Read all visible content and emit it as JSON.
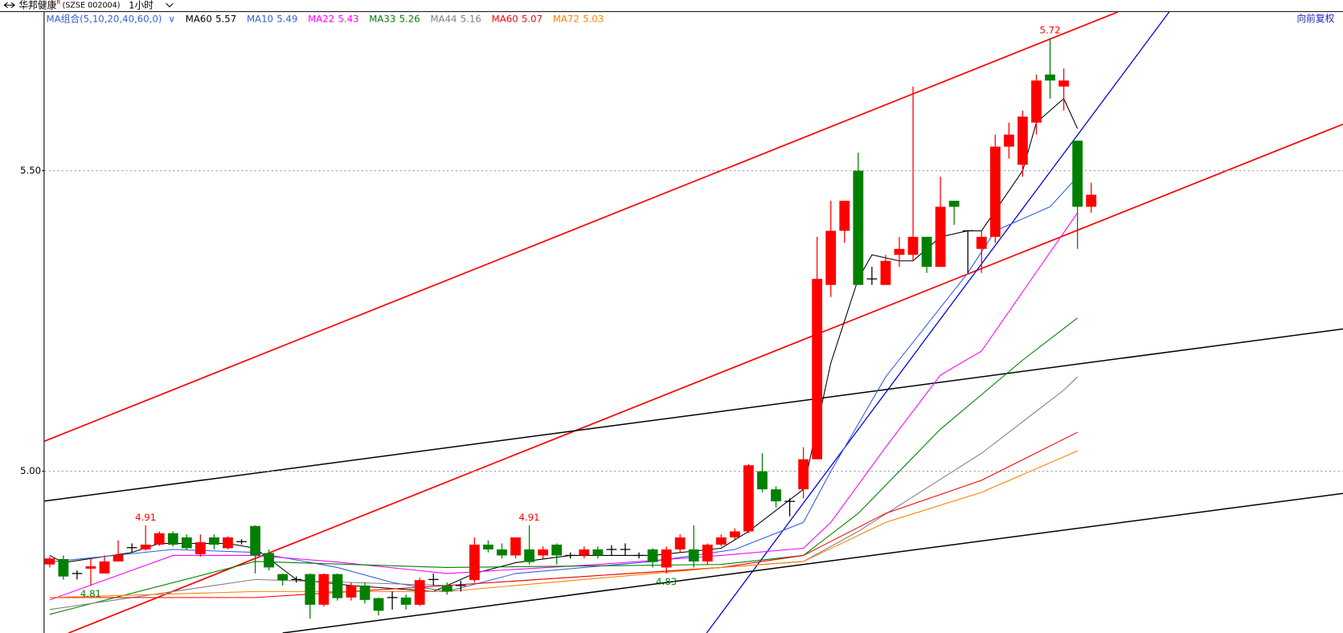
{
  "header": {
    "stock": "华邦健康",
    "superscript": "R",
    "code": "(SZSE 002004)",
    "period": "1小时",
    "adjust": "向前复权"
  },
  "chart_data": {
    "type": "candlestick",
    "indicator_set": "MA组合(5,10,20,40,60,0)",
    "ylim": [
      4.731,
      5.764
    ],
    "yticks": [
      {
        "value": 5,
        "label": "5.00"
      },
      {
        "value": 5.5,
        "label": "5.50"
      }
    ],
    "grid": true,
    "up_color": "#ff0000",
    "down_color": "#008000",
    "flat_color": "#000000",
    "candles": [
      {
        "open": 4.845,
        "high": 4.858,
        "low": 4.84,
        "close": 4.855
      },
      {
        "open": 4.854,
        "high": 4.86,
        "low": 4.82,
        "close": 4.825
      },
      {
        "open": 4.83,
        "high": 4.835,
        "low": 4.82,
        "close": 4.83
      },
      {
        "open": 4.838,
        "high": 4.855,
        "low": 4.81,
        "close": 4.842,
        "low_label": "4.81"
      },
      {
        "open": 4.83,
        "high": 4.86,
        "low": 4.83,
        "close": 4.85
      },
      {
        "open": 4.85,
        "high": 4.885,
        "low": 4.85,
        "close": 4.861
      },
      {
        "open": 4.873,
        "high": 4.88,
        "low": 4.865,
        "close": 4.873
      },
      {
        "open": 4.87,
        "high": 4.91,
        "low": 4.868,
        "close": 4.878,
        "high_label": "4.91"
      },
      {
        "open": 4.878,
        "high": 4.9,
        "low": 4.876,
        "close": 4.897
      },
      {
        "open": 4.897,
        "high": 4.9,
        "low": 4.875,
        "close": 4.878
      },
      {
        "open": 4.89,
        "high": 4.895,
        "low": 4.87,
        "close": 4.872
      },
      {
        "open": 4.862,
        "high": 4.895,
        "low": 4.858,
        "close": 4.882
      },
      {
        "open": 4.89,
        "high": 4.895,
        "low": 4.87,
        "close": 4.878
      },
      {
        "open": 4.872,
        "high": 4.892,
        "low": 4.87,
        "close": 4.89
      },
      {
        "open": 4.883,
        "high": 4.887,
        "low": 4.878,
        "close": 4.883
      },
      {
        "open": 4.909,
        "high": 4.91,
        "low": 4.83,
        "close": 4.86
      },
      {
        "open": 4.864,
        "high": 4.87,
        "low": 4.835,
        "close": 4.84
      },
      {
        "open": 4.829,
        "high": 4.83,
        "low": 4.81,
        "close": 4.819
      },
      {
        "open": 4.82,
        "high": 4.825,
        "low": 4.815,
        "close": 4.82
      },
      {
        "open": 4.829,
        "high": 4.83,
        "low": 4.755,
        "close": 4.778
      },
      {
        "open": 4.778,
        "high": 4.83,
        "low": 4.775,
        "close": 4.829
      },
      {
        "open": 4.829,
        "high": 4.83,
        "low": 4.785,
        "close": 4.789
      },
      {
        "open": 4.79,
        "high": 4.815,
        "low": 4.785,
        "close": 4.81
      },
      {
        "open": 4.81,
        "high": 4.815,
        "low": 4.78,
        "close": 4.786
      },
      {
        "open": 4.789,
        "high": 4.79,
        "low": 4.76,
        "close": 4.768
      },
      {
        "open": 4.79,
        "high": 4.8,
        "low": 4.77,
        "close": 4.79
      },
      {
        "open": 4.79,
        "high": 4.795,
        "low": 4.77,
        "close": 4.778
      },
      {
        "open": 4.778,
        "high": 4.823,
        "low": 4.776,
        "close": 4.819
      },
      {
        "open": 4.82,
        "high": 4.83,
        "low": 4.81,
        "close": 4.82
      },
      {
        "open": 4.81,
        "high": 4.815,
        "low": 4.795,
        "close": 4.8
      },
      {
        "open": 4.81,
        "high": 4.818,
        "low": 4.8,
        "close": 4.81
      },
      {
        "open": 4.819,
        "high": 4.89,
        "low": 4.815,
        "close": 4.878
      },
      {
        "open": 4.878,
        "high": 4.885,
        "low": 4.865,
        "close": 4.87
      },
      {
        "open": 4.87,
        "high": 4.88,
        "low": 4.855,
        "close": 4.86
      },
      {
        "open": 4.86,
        "high": 4.89,
        "low": 4.855,
        "close": 4.89
      },
      {
        "open": 4.87,
        "high": 4.91,
        "low": 4.845,
        "close": 4.849,
        "high_label": "4.91"
      },
      {
        "open": 4.86,
        "high": 4.875,
        "low": 4.855,
        "close": 4.87
      },
      {
        "open": 4.878,
        "high": 4.88,
        "low": 4.845,
        "close": 4.86
      },
      {
        "open": 4.86,
        "high": 4.865,
        "low": 4.855,
        "close": 4.86
      },
      {
        "open": 4.86,
        "high": 4.875,
        "low": 4.855,
        "close": 4.87
      },
      {
        "open": 4.87,
        "high": 4.875,
        "low": 4.855,
        "close": 4.86
      },
      {
        "open": 4.87,
        "high": 4.877,
        "low": 4.86,
        "close": 4.87
      },
      {
        "open": 4.87,
        "high": 4.88,
        "low": 4.86,
        "close": 4.87
      },
      {
        "open": 4.86,
        "high": 4.865,
        "low": 4.855,
        "close": 4.86
      },
      {
        "open": 4.87,
        "high": 4.872,
        "low": 4.84,
        "close": 4.849
      },
      {
        "open": 4.84,
        "high": 4.875,
        "low": 4.83,
        "close": 4.87,
        "low_label": "4.83"
      },
      {
        "open": 4.87,
        "high": 4.895,
        "low": 4.865,
        "close": 4.89
      },
      {
        "open": 4.87,
        "high": 4.91,
        "low": 4.84,
        "close": 4.85
      },
      {
        "open": 4.85,
        "high": 4.88,
        "low": 4.845,
        "close": 4.878
      },
      {
        "open": 4.878,
        "high": 4.895,
        "low": 4.875,
        "close": 4.89
      },
      {
        "open": 4.89,
        "high": 4.905,
        "low": 4.887,
        "close": 4.9
      },
      {
        "open": 4.9,
        "high": 5.012,
        "low": 4.897,
        "close": 5.01
      },
      {
        "open": 5.0,
        "high": 5.03,
        "low": 4.965,
        "close": 4.97
      },
      {
        "open": 4.97,
        "high": 4.975,
        "low": 4.94,
        "close": 4.95
      },
      {
        "open": 4.95,
        "high": 4.955,
        "low": 4.925,
        "close": 4.95
      },
      {
        "open": 4.97,
        "high": 5.04,
        "low": 4.955,
        "close": 5.02
      },
      {
        "open": 5.02,
        "high": 5.39,
        "low": 5.02,
        "close": 5.32
      },
      {
        "open": 5.31,
        "high": 5.45,
        "low": 5.29,
        "close": 5.4
      },
      {
        "open": 5.4,
        "high": 5.45,
        "low": 5.38,
        "close": 5.45
      },
      {
        "open": 5.5,
        "high": 5.53,
        "low": 5.31,
        "close": 5.31
      },
      {
        "open": 5.32,
        "high": 5.34,
        "low": 5.31,
        "close": 5.32
      },
      {
        "open": 5.31,
        "high": 5.36,
        "low": 5.31,
        "close": 5.35
      },
      {
        "open": 5.36,
        "high": 5.39,
        "low": 5.34,
        "close": 5.37
      },
      {
        "open": 5.36,
        "high": 5.64,
        "low": 5.35,
        "close": 5.39
      },
      {
        "open": 5.39,
        "high": 5.39,
        "low": 5.33,
        "close": 5.34
      },
      {
        "open": 5.34,
        "high": 5.49,
        "low": 5.34,
        "close": 5.44
      },
      {
        "open": 5.45,
        "high": 5.45,
        "low": 5.41,
        "close": 5.44
      },
      {
        "open": 5.4,
        "high": 5.4,
        "low": 5.33,
        "close": 5.4
      },
      {
        "open": 5.37,
        "high": 5.4,
        "low": 5.33,
        "close": 5.39
      },
      {
        "open": 5.39,
        "high": 5.56,
        "low": 5.38,
        "close": 5.54
      },
      {
        "open": 5.54,
        "high": 5.58,
        "low": 5.52,
        "close": 5.56
      },
      {
        "open": 5.51,
        "high": 5.6,
        "low": 5.49,
        "close": 5.59
      },
      {
        "open": 5.58,
        "high": 5.66,
        "low": 5.56,
        "close": 5.65
      },
      {
        "open": 5.66,
        "high": 5.72,
        "low": 5.62,
        "close": 5.65,
        "high_label": "5.72"
      },
      {
        "open": 5.64,
        "high": 5.67,
        "low": 5.6,
        "close": 5.65
      },
      {
        "open": 5.55,
        "high": 5.55,
        "low": 5.37,
        "close": 5.44
      },
      {
        "open": 5.44,
        "high": 5.48,
        "low": 5.43,
        "close": 5.46
      }
    ],
    "series": [
      {
        "name": "MA60",
        "color": "#000000",
        "last": 5.57,
        "x": [
          0,
          1,
          6,
          8,
          13,
          15,
          18,
          22,
          28,
          31,
          34,
          38,
          44,
          49,
          51,
          55,
          57,
          59,
          60,
          62,
          63,
          65,
          67,
          68,
          71,
          72,
          74,
          75
        ],
        "values": [
          4.86,
          4.848,
          4.865,
          4.88,
          4.88,
          4.872,
          4.82,
          4.81,
          4.8,
          4.83,
          4.848,
          4.86,
          4.86,
          4.872,
          4.9,
          4.97,
          5.18,
          5.32,
          5.36,
          5.35,
          5.35,
          5.39,
          5.4,
          5.4,
          5.5,
          5.58,
          5.62,
          5.57
        ]
      },
      {
        "name": "MA10",
        "color": "#2f5fe0",
        "last": 5.49,
        "x": [
          0,
          9,
          15,
          21,
          25,
          29,
          34,
          44,
          50,
          55,
          57,
          61,
          67,
          69,
          73,
          75
        ],
        "values": [
          4.849,
          4.87,
          4.865,
          4.84,
          4.815,
          4.8,
          4.83,
          4.85,
          4.87,
          4.915,
          5.0,
          5.157,
          5.33,
          5.4,
          5.44,
          5.49
        ]
      },
      {
        "name": "MA22",
        "color": "#ff00ff",
        "last": 5.43,
        "x": [
          0,
          9,
          15,
          21,
          29,
          40,
          49,
          55,
          57,
          61,
          65,
          68,
          75
        ],
        "values": [
          4.786,
          4.86,
          4.86,
          4.849,
          4.83,
          4.845,
          4.86,
          4.872,
          4.915,
          5.04,
          5.16,
          5.2,
          5.43
        ]
      },
      {
        "name": "MA33",
        "color": "#008000",
        "last": 5.26,
        "x": [
          0,
          15,
          29,
          49,
          55,
          59,
          65,
          71,
          75
        ],
        "values": [
          4.762,
          4.85,
          4.84,
          4.845,
          4.86,
          4.93,
          5.07,
          5.185,
          5.255
        ]
      },
      {
        "name": "MA44",
        "color": "#808080",
        "last": 5.16,
        "x": [
          0,
          15,
          29,
          49,
          55,
          59,
          68,
          74,
          75
        ],
        "values": [
          4.77,
          4.82,
          4.81,
          4.84,
          4.85,
          4.9,
          5.03,
          5.135,
          5.157
        ]
      },
      {
        "name": "MA60",
        "color": "#ff0000",
        "last": 5.07,
        "x": [
          0,
          15,
          29,
          49,
          55,
          61,
          68,
          75
        ],
        "values": [
          4.79,
          4.79,
          4.81,
          4.84,
          4.86,
          4.93,
          4.985,
          5.065
        ]
      },
      {
        "name": "MA72",
        "color": "#ff8000",
        "last": 5.03,
        "x": [
          0,
          15,
          29,
          49,
          55,
          61,
          68,
          75
        ],
        "values": [
          4.79,
          4.8,
          4.8,
          4.84,
          4.85,
          4.915,
          4.965,
          5.034
        ]
      }
    ]
  }
}
